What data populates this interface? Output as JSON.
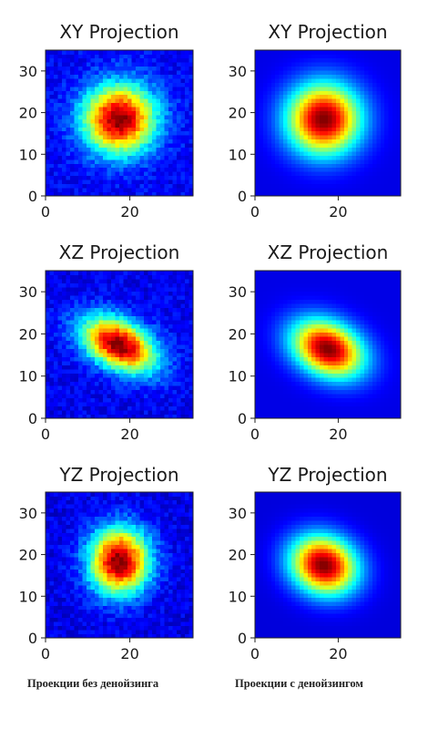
{
  "chart_data": [
    {
      "type": "heatmap",
      "title": "XY Projection",
      "xticks": [
        "0",
        "20"
      ],
      "yticks": [
        "0",
        "10",
        "20",
        "30"
      ],
      "xlim": [
        0,
        35
      ],
      "ylim": [
        0,
        35
      ],
      "colormap": "jet",
      "peak": {
        "x": 18,
        "y": 19
      },
      "denoised": false
    },
    {
      "type": "heatmap",
      "title": "XY Projection",
      "xticks": [
        "0",
        "20"
      ],
      "yticks": [
        "0",
        "10",
        "20",
        "30"
      ],
      "xlim": [
        0,
        35
      ],
      "ylim": [
        0,
        35
      ],
      "colormap": "jet",
      "peak": {
        "x": 17,
        "y": 19
      },
      "denoised": true
    },
    {
      "type": "heatmap",
      "title": "XZ Projection",
      "xticks": [
        "0",
        "20"
      ],
      "yticks": [
        "0",
        "10",
        "20",
        "30"
      ],
      "xlim": [
        0,
        35
      ],
      "ylim": [
        0,
        35
      ],
      "colormap": "jet",
      "peak": {
        "x": 18,
        "y": 18
      },
      "denoised": false
    },
    {
      "type": "heatmap",
      "title": "XZ Projection",
      "xticks": [
        "0",
        "20"
      ],
      "yticks": [
        "0",
        "10",
        "20",
        "30"
      ],
      "xlim": [
        0,
        35
      ],
      "ylim": [
        0,
        35
      ],
      "colormap": "jet",
      "peak": {
        "x": 18,
        "y": 17
      },
      "denoised": true
    },
    {
      "type": "heatmap",
      "title": "YZ Projection",
      "xticks": [
        "0",
        "20"
      ],
      "yticks": [
        "0",
        "10",
        "20",
        "30"
      ],
      "xlim": [
        0,
        35
      ],
      "ylim": [
        0,
        35
      ],
      "colormap": "jet",
      "peak": {
        "x": 18,
        "y": 19
      },
      "denoised": false
    },
    {
      "type": "heatmap",
      "title": "YZ Projection",
      "xticks": [
        "0",
        "20"
      ],
      "yticks": [
        "0",
        "10",
        "20",
        "30"
      ],
      "xlim": [
        0,
        35
      ],
      "ylim": [
        0,
        35
      ],
      "colormap": "jet",
      "peak": {
        "x": 17,
        "y": 18
      },
      "denoised": true
    }
  ],
  "captions": {
    "left": "Проекции без денойзинга",
    "right": "Проекции с денойзингом"
  }
}
